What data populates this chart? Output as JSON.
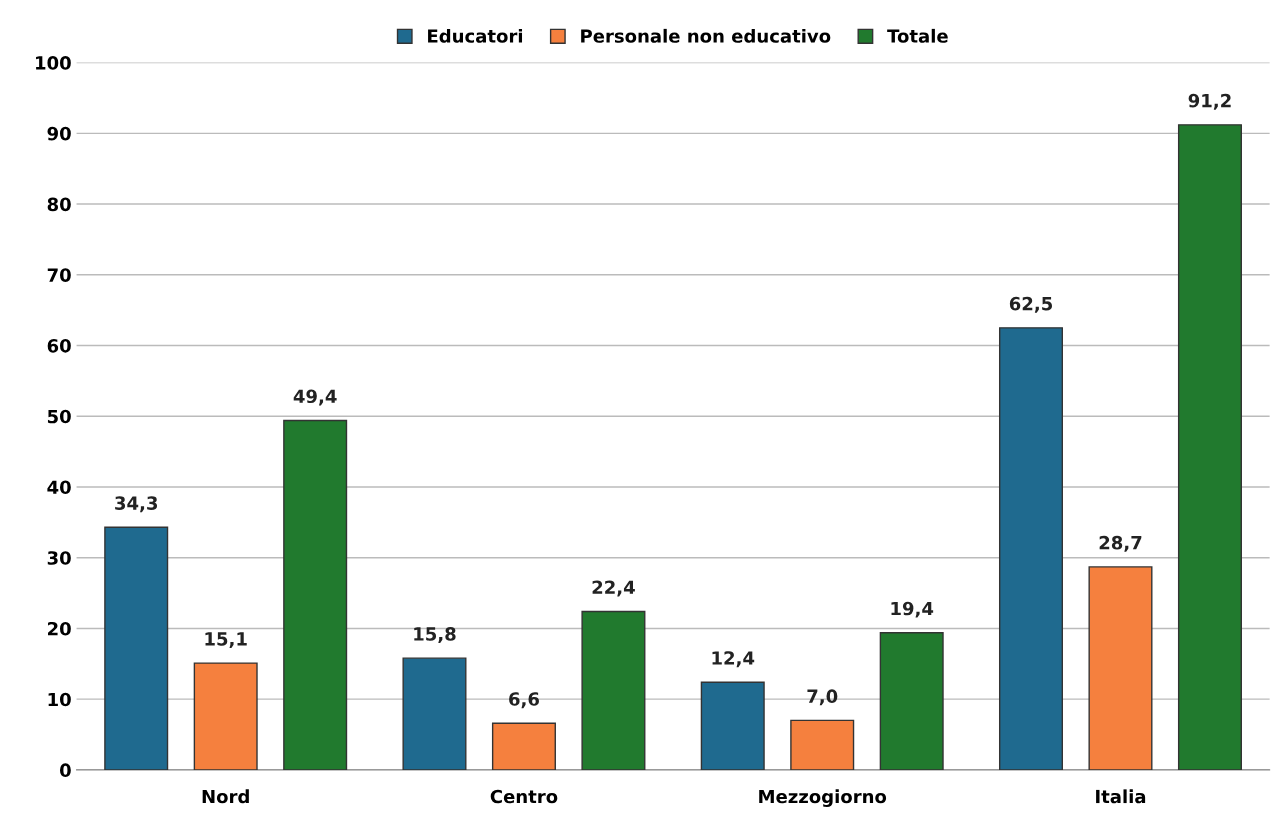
{
  "chart_data": {
    "type": "bar",
    "categories": [
      "Nord",
      "Centro",
      "Mezzogiorno",
      "Italia"
    ],
    "series": [
      {
        "name": "Educatori",
        "color": "#1f6a8f",
        "values": [
          34.3,
          15.8,
          12.4,
          62.5
        ],
        "value_labels": [
          "34,3",
          "15,8",
          "12,4",
          "62,5"
        ]
      },
      {
        "name": "Personale non educativo",
        "color": "#f5803e",
        "values": [
          15.1,
          6.6,
          7.0,
          28.7
        ],
        "value_labels": [
          "15,1",
          "6,6",
          "7,0",
          "28,7"
        ]
      },
      {
        "name": "Totale",
        "color": "#217a2e",
        "values": [
          49.4,
          22.4,
          19.4,
          91.2
        ],
        "value_labels": [
          "49,4",
          "22,4",
          "19,4",
          "91,2"
        ]
      }
    ],
    "ylim": [
      0,
      100
    ],
    "yticks": [
      0,
      10,
      20,
      30,
      40,
      50,
      60,
      70,
      80,
      90,
      100
    ],
    "grid": "y",
    "legend": "top"
  }
}
